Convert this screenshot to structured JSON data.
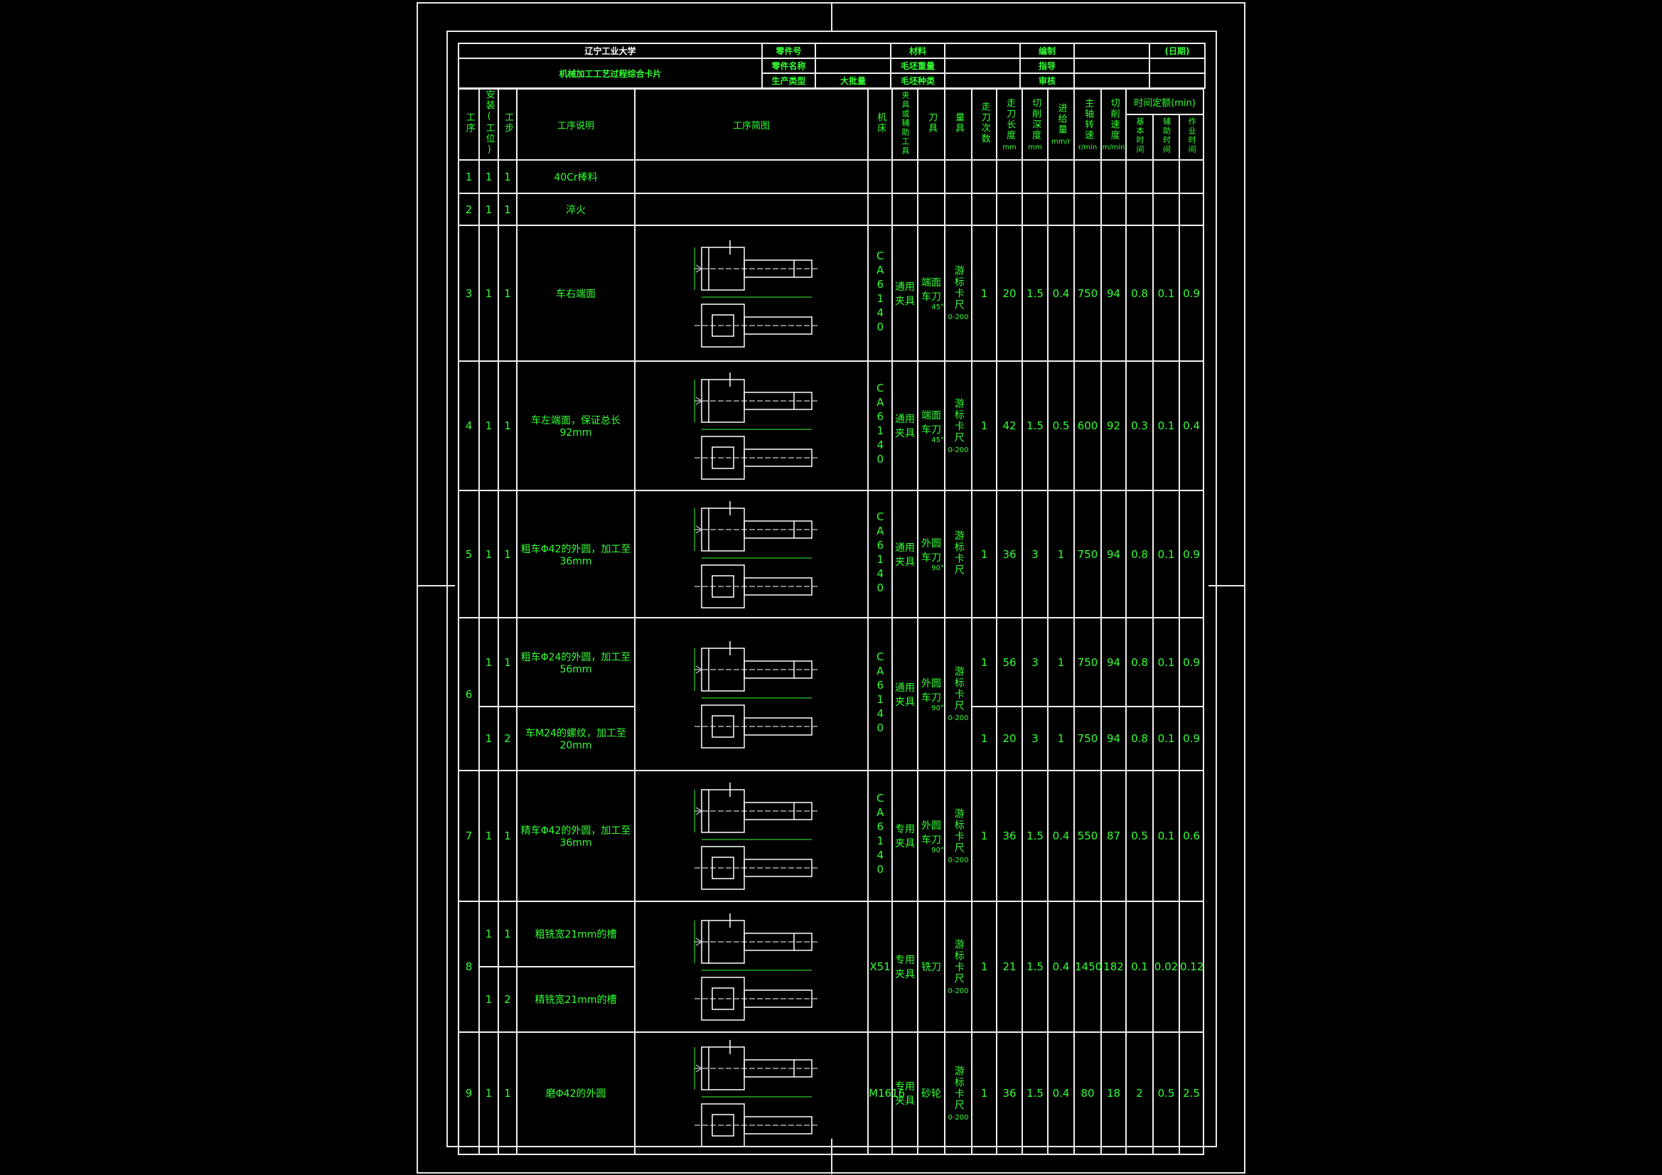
{
  "title_block": {
    "school": "辽宁工业大学",
    "card_title": "机械加工工艺过程综合卡片",
    "part_no_label": "零件号",
    "part_no": "",
    "material_label": "材料",
    "material": "",
    "prepared_label": "编制",
    "prepared": "",
    "date_label": "(日期)",
    "part_name_label": "零件名称",
    "part_name": "",
    "blank_weight_label": "毛坯重量",
    "blank_weight": "",
    "guide_label": "指导",
    "guide": "",
    "production_type_label": "生产类型",
    "production_type": "大批量",
    "blank_kind_label": "毛坯种类",
    "blank_kind": "",
    "review_label": "审核",
    "review": ""
  },
  "columns": {
    "op": "工序",
    "install": "安装(工位)",
    "step": "工步",
    "op_prefix": "工序",
    "desc": "工序说明",
    "sketch": "工序简图",
    "machine": "机床",
    "fixture": "夹具或辅助工具",
    "tool": "刀具",
    "gauge": "量具",
    "passes": "走刀次数",
    "pass_len": "走刀长度",
    "pass_len_unit": "mm",
    "depth": "切削深度",
    "depth_unit": "mm",
    "feed": "进给量",
    "feed_unit": "mm/r",
    "spindle": "主轴转速",
    "spindle_unit": "r/min",
    "speed": "切削速度",
    "speed_unit": "m/min",
    "time_group": "时间定额(min)",
    "t_basic": "基本时间",
    "t_aux": "辅助时间",
    "t_work": "作业时间"
  },
  "colors": {
    "text": "#33ff33",
    "lines": "#f0f0f0",
    "background": "#000000"
  },
  "operations": [
    {
      "op": "1",
      "steps": [
        {
          "install": "1",
          "step": "1",
          "desc": "40Cr棒料"
        }
      ]
    },
    {
      "op": "2",
      "steps": [
        {
          "install": "1",
          "step": "1",
          "desc": "淬火"
        }
      ]
    },
    {
      "op": "3",
      "sketch": true,
      "machine": "CA6140",
      "fixture": "通用夹具",
      "tool": "端面车刀",
      "tool_angle": "45°",
      "gauge": "游标卡尺",
      "gauge_range": "0-200",
      "steps": [
        {
          "install": "1",
          "step": "1",
          "desc": "车右端面",
          "vals": [
            "1",
            "20",
            "1.5",
            "0.4",
            "750",
            "94",
            "0.8",
            "0.1",
            "0.9"
          ]
        }
      ]
    },
    {
      "op": "4",
      "sketch": true,
      "machine": "CA6140",
      "fixture": "通用夹具",
      "tool": "端面车刀",
      "tool_angle": "45°",
      "gauge": "游标卡尺",
      "gauge_range": "0-200",
      "steps": [
        {
          "install": "1",
          "step": "1",
          "desc": "车左端面，保证总长92mm",
          "vals": [
            "1",
            "42",
            "1.5",
            "0.5",
            "600",
            "92",
            "0.3",
            "0.1",
            "0.4"
          ]
        }
      ]
    },
    {
      "op": "5",
      "sketch": true,
      "machine": "CA6140",
      "fixture": "通用夹具",
      "tool": "外圆车刀",
      "tool_angle": "90°",
      "gauge": "游标卡尺",
      "gauge_range": "",
      "steps": [
        {
          "install": "1",
          "step": "1",
          "desc": "粗车Φ42的外圆，加工至36mm",
          "vals": [
            "1",
            "36",
            "3",
            "1",
            "750",
            "94",
            "0.8",
            "0.1",
            "0.9"
          ]
        }
      ]
    },
    {
      "op": "6",
      "sketch": true,
      "machine": "CA6140",
      "fixture": "通用夹具",
      "tool": "外圆车刀",
      "tool_angle": "90°",
      "gauge": "游标卡尺",
      "gauge_range": "0-200",
      "steps": [
        {
          "install": "1",
          "step": "1",
          "desc": "粗车Φ24的外圆，加工至56mm",
          "vals": [
            "1",
            "56",
            "3",
            "1",
            "750",
            "94",
            "0.8",
            "0.1",
            "0.9"
          ]
        },
        {
          "install": "1",
          "step": "2",
          "desc": "车M24的螺纹，加工至20mm",
          "vals": [
            "1",
            "20",
            "3",
            "1",
            "750",
            "94",
            "0.8",
            "0.1",
            "0.9"
          ]
        }
      ]
    },
    {
      "op": "7",
      "sketch": true,
      "machine": "CA6140",
      "fixture": "专用夹具",
      "tool": "外圆车刀",
      "tool_angle": "90°",
      "gauge": "游标卡尺",
      "gauge_range": "0-200",
      "steps": [
        {
          "install": "1",
          "step": "1",
          "desc": "精车Φ42的外圆，加工至36mm",
          "vals": [
            "1",
            "36",
            "1.5",
            "0.4",
            "550",
            "87",
            "0.5",
            "0.1",
            "0.6"
          ]
        }
      ]
    },
    {
      "op": "8",
      "sketch": true,
      "machine": "X51",
      "fixture": "专用夹具",
      "tool": "铣刀",
      "tool_angle": "",
      "gauge": "游标卡尺",
      "gauge_range": "0-200",
      "shared_vals": true,
      "steps": [
        {
          "install": "1",
          "step": "1",
          "desc": "粗铣宽21mm的槽",
          "vals": [
            "1",
            "21",
            "1.5",
            "0.4",
            "1450",
            "182",
            "0.1",
            "0.02",
            "0.12"
          ]
        },
        {
          "install": "1",
          "step": "2",
          "desc": "精铣宽21mm的槽"
        }
      ]
    },
    {
      "op": "9",
      "sketch": true,
      "machine": "M1616",
      "fixture": "专用夹具",
      "tool": "砂轮",
      "tool_angle": "",
      "gauge": "游标卡尺",
      "gauge_range": "0-200",
      "steps": [
        {
          "install": "1",
          "step": "1",
          "desc": "磨Φ42的外圆",
          "vals": [
            "1",
            "36",
            "1.5",
            "0.4",
            "80",
            "18",
            "2",
            "0.5",
            "2.5"
          ]
        }
      ]
    }
  ]
}
